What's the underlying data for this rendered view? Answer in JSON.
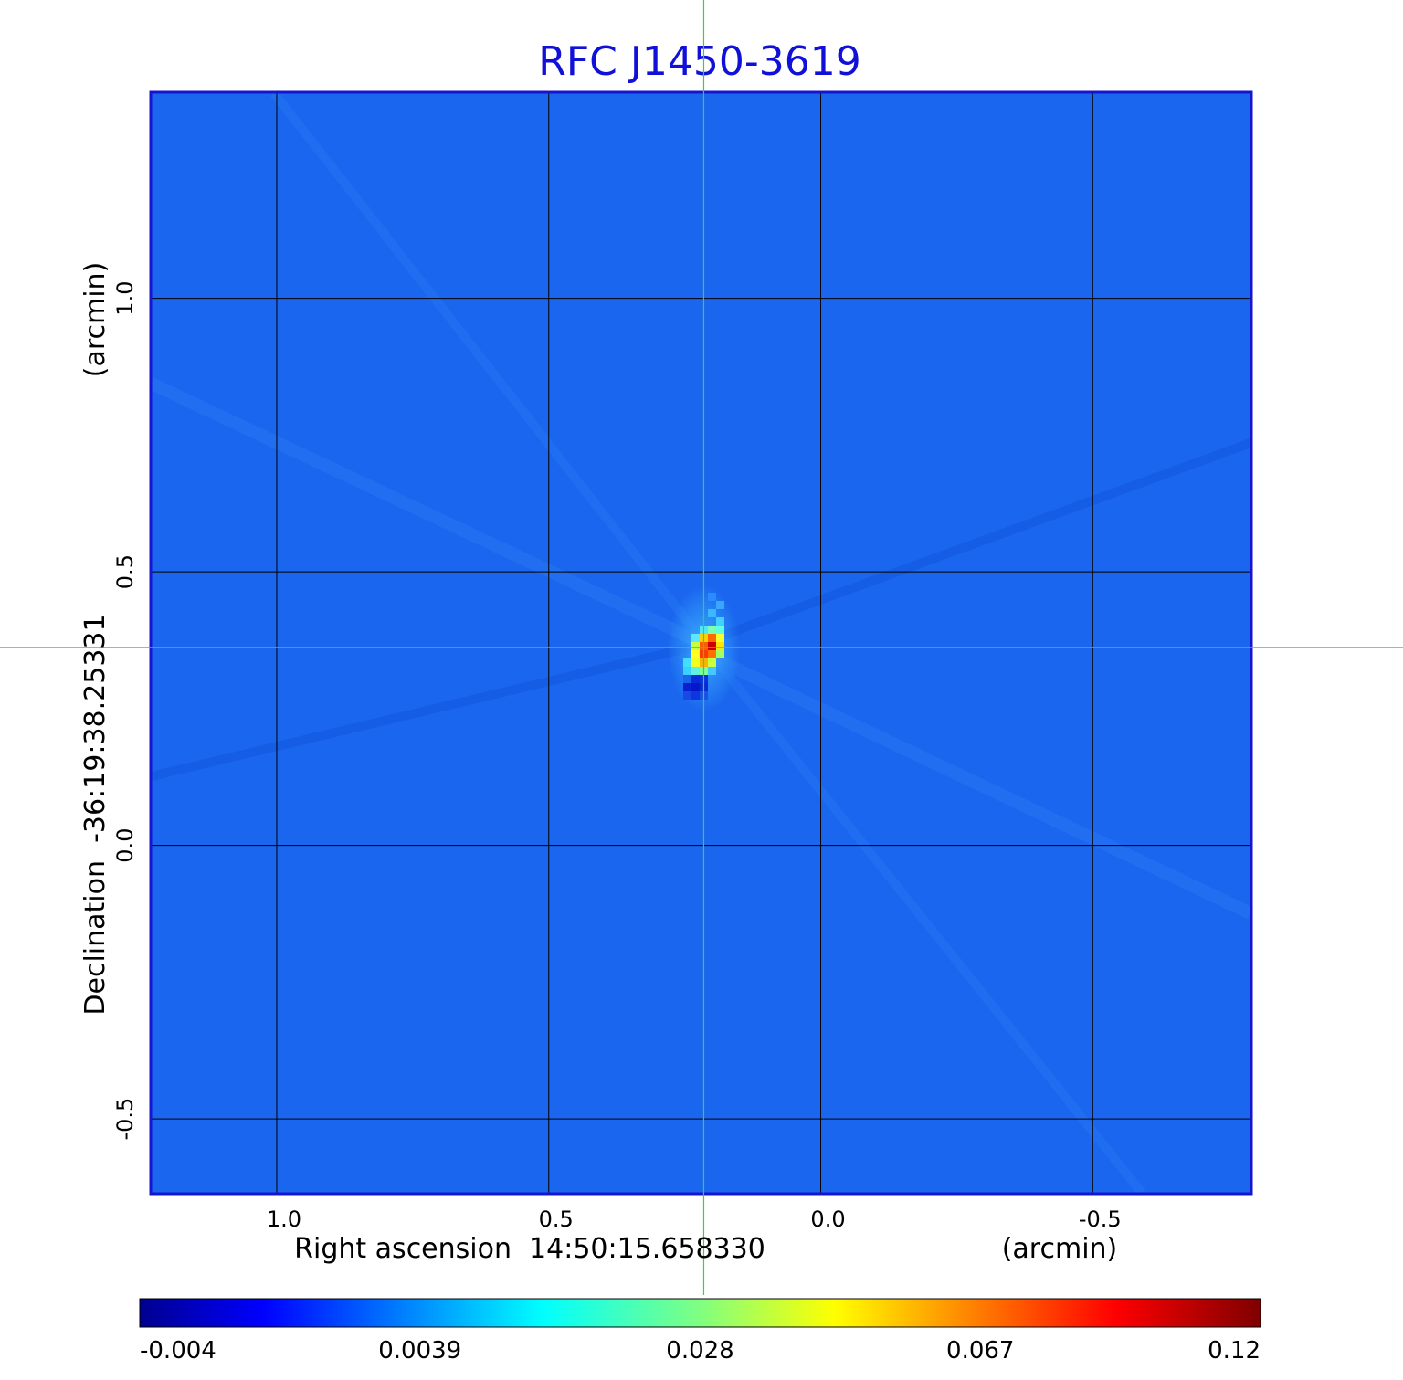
{
  "chart_data": {
    "type": "heatmap",
    "title": "RFC J1450-3619",
    "xlabel": "Right ascension  14:50:15.658330",
    "xunit": "(arcmin)",
    "ylabel": "Declination  -36:19:38.25331",
    "yunit": "(arcmin)",
    "x_ticks": [
      "1.0",
      "0.5",
      "0.0",
      "-0.5"
    ],
    "x_tick_values": [
      1.0,
      0.5,
      0.0,
      -0.5
    ],
    "y_ticks": [
      "1.0",
      "0.5",
      "0.0",
      "-0.5"
    ],
    "y_tick_values": [
      1.0,
      0.5,
      0.0,
      -0.5
    ],
    "xlim": [
      1.23,
      -0.79
    ],
    "ylim": [
      -0.635,
      1.375
    ],
    "grid": true,
    "crosshair": {
      "x": 0.215,
      "y": 0.362
    },
    "colorbar": {
      "labels": [
        "-0.004",
        "0.0039",
        "0.028",
        "0.067",
        "0.12"
      ],
      "min": -0.004,
      "max": 0.12,
      "colormap": "jet"
    },
    "peak": {
      "x": 0.215,
      "y": 0.36,
      "value": 0.12
    },
    "colors": {
      "title": "#1010d8",
      "frame": "#1515d0",
      "background_map": "#1a66ee",
      "crosshair": "#3ecf3e",
      "grid": "#000000"
    }
  }
}
